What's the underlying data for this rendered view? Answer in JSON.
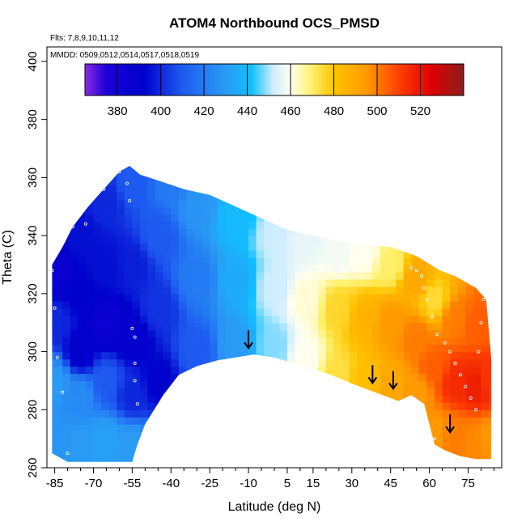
{
  "chart_data": {
    "type": "heatmap",
    "title": "ATOM4 Northbound OCS_PMSD",
    "subtitle_flights": "Flts: 7,8,9,10,11,12",
    "subtitle_dates": "MMDD: 0509,0512,0514,0517,0518,0519",
    "xlabel": "Latitude (deg N)",
    "ylabel": "Theta (C)",
    "xlim": [
      -88,
      88
    ],
    "ylim": [
      260,
      405
    ],
    "x_ticks": [
      -85,
      -70,
      -55,
      -40,
      -25,
      -10,
      5,
      15,
      30,
      45,
      60,
      75
    ],
    "y_ticks": [
      260,
      280,
      300,
      320,
      340,
      360,
      380,
      400
    ],
    "colorbar": {
      "range": [
        365,
        540
      ],
      "ticks": [
        380,
        400,
        420,
        440,
        460,
        480,
        500,
        520
      ],
      "stops": [
        {
          "value": 365,
          "color": "#8a2be2"
        },
        {
          "value": 375,
          "color": "#1a00d8"
        },
        {
          "value": 392,
          "color": "#0000cc"
        },
        {
          "value": 410,
          "color": "#1e5af0"
        },
        {
          "value": 430,
          "color": "#2a9bf5"
        },
        {
          "value": 442,
          "color": "#10c0ff"
        },
        {
          "value": 452,
          "color": "#cfeeff"
        },
        {
          "value": 460,
          "color": "#fffff0"
        },
        {
          "value": 470,
          "color": "#fff06a"
        },
        {
          "value": 480,
          "color": "#ffc400"
        },
        {
          "value": 495,
          "color": "#ff9a00"
        },
        {
          "value": 510,
          "color": "#ff4000"
        },
        {
          "value": 525,
          "color": "#e00000"
        },
        {
          "value": 540,
          "color": "#8b1e1e"
        }
      ]
    },
    "coverage_boundary": {
      "lower": [
        [
          -86,
          265
        ],
        [
          -80,
          262
        ],
        [
          -64,
          262
        ],
        [
          -55,
          262
        ],
        [
          -53,
          268
        ],
        [
          -50,
          275
        ],
        [
          -43,
          285
        ],
        [
          -37,
          292
        ],
        [
          -30,
          295
        ],
        [
          -22,
          297
        ],
        [
          -15,
          298
        ],
        [
          -8,
          299
        ],
        [
          0,
          298
        ],
        [
          7,
          296
        ],
        [
          15,
          294
        ],
        [
          22,
          292
        ],
        [
          30,
          289
        ],
        [
          36,
          287
        ],
        [
          42,
          285
        ],
        [
          48,
          283
        ],
        [
          53,
          285
        ],
        [
          58,
          282
        ],
        [
          62,
          268
        ],
        [
          66,
          266
        ],
        [
          72,
          264
        ],
        [
          78,
          263
        ],
        [
          84,
          263
        ]
      ],
      "upper": [
        [
          84,
          297
        ],
        [
          82,
          318
        ],
        [
          78,
          322
        ],
        [
          74,
          324
        ],
        [
          70,
          326
        ],
        [
          64,
          328
        ],
        [
          55,
          333
        ],
        [
          45,
          336
        ],
        [
          35,
          337
        ],
        [
          25,
          338
        ],
        [
          15,
          340
        ],
        [
          5,
          342
        ],
        [
          -5,
          346
        ],
        [
          -15,
          350
        ],
        [
          -25,
          354
        ],
        [
          -35,
          356
        ],
        [
          -45,
          359
        ],
        [
          -52,
          361
        ],
        [
          -56,
          364
        ],
        [
          -60,
          362
        ],
        [
          -66,
          356
        ],
        [
          -72,
          350
        ],
        [
          -78,
          343
        ],
        [
          -82,
          336
        ],
        [
          -86,
          330
        ]
      ]
    },
    "field_samples": [
      {
        "lat": -85,
        "theta": 270,
        "value": 428
      },
      {
        "lat": -85,
        "theta": 290,
        "value": 430
      },
      {
        "lat": -85,
        "theta": 310,
        "value": 400
      },
      {
        "lat": -85,
        "theta": 328,
        "value": 385
      },
      {
        "lat": -75,
        "theta": 268,
        "value": 430
      },
      {
        "lat": -75,
        "theta": 285,
        "value": 425
      },
      {
        "lat": -75,
        "theta": 300,
        "value": 390
      },
      {
        "lat": -75,
        "theta": 320,
        "value": 392
      },
      {
        "lat": -75,
        "theta": 340,
        "value": 395
      },
      {
        "lat": -65,
        "theta": 270,
        "value": 432
      },
      {
        "lat": -65,
        "theta": 290,
        "value": 410
      },
      {
        "lat": -65,
        "theta": 310,
        "value": 385
      },
      {
        "lat": -65,
        "theta": 330,
        "value": 395
      },
      {
        "lat": -65,
        "theta": 352,
        "value": 400
      },
      {
        "lat": -55,
        "theta": 268,
        "value": 430
      },
      {
        "lat": -55,
        "theta": 285,
        "value": 400
      },
      {
        "lat": -55,
        "theta": 305,
        "value": 388
      },
      {
        "lat": -55,
        "theta": 330,
        "value": 398
      },
      {
        "lat": -55,
        "theta": 358,
        "value": 410
      },
      {
        "lat": -45,
        "theta": 290,
        "value": 392
      },
      {
        "lat": -45,
        "theta": 315,
        "value": 402
      },
      {
        "lat": -45,
        "theta": 340,
        "value": 410
      },
      {
        "lat": -40,
        "theta": 358,
        "value": 420
      },
      {
        "lat": -30,
        "theta": 300,
        "value": 410
      },
      {
        "lat": -30,
        "theta": 325,
        "value": 420
      },
      {
        "lat": -30,
        "theta": 350,
        "value": 428
      },
      {
        "lat": -15,
        "theta": 302,
        "value": 430
      },
      {
        "lat": -15,
        "theta": 325,
        "value": 435
      },
      {
        "lat": -15,
        "theta": 346,
        "value": 440
      },
      {
        "lat": 0,
        "theta": 302,
        "value": 448
      },
      {
        "lat": 0,
        "theta": 322,
        "value": 452
      },
      {
        "lat": 0,
        "theta": 340,
        "value": 452
      },
      {
        "lat": 12,
        "theta": 298,
        "value": 460
      },
      {
        "lat": 12,
        "theta": 318,
        "value": 462
      },
      {
        "lat": 12,
        "theta": 338,
        "value": 456
      },
      {
        "lat": 25,
        "theta": 292,
        "value": 474
      },
      {
        "lat": 25,
        "theta": 315,
        "value": 476
      },
      {
        "lat": 25,
        "theta": 334,
        "value": 458
      },
      {
        "lat": 35,
        "theta": 290,
        "value": 482
      },
      {
        "lat": 35,
        "theta": 312,
        "value": 486
      },
      {
        "lat": 35,
        "theta": 334,
        "value": 460
      },
      {
        "lat": 45,
        "theta": 288,
        "value": 490
      },
      {
        "lat": 45,
        "theta": 310,
        "value": 495
      },
      {
        "lat": 45,
        "theta": 330,
        "value": 470
      },
      {
        "lat": 55,
        "theta": 286,
        "value": 495
      },
      {
        "lat": 55,
        "theta": 305,
        "value": 500
      },
      {
        "lat": 55,
        "theta": 325,
        "value": 490
      },
      {
        "lat": 62,
        "theta": 272,
        "value": 495
      },
      {
        "lat": 62,
        "theta": 295,
        "value": 505
      },
      {
        "lat": 62,
        "theta": 318,
        "value": 475
      },
      {
        "lat": 70,
        "theta": 270,
        "value": 500
      },
      {
        "lat": 70,
        "theta": 290,
        "value": 515
      },
      {
        "lat": 70,
        "theta": 312,
        "value": 500
      },
      {
        "lat": 78,
        "theta": 268,
        "value": 498
      },
      {
        "lat": 78,
        "theta": 288,
        "value": 518
      },
      {
        "lat": 78,
        "theta": 310,
        "value": 505
      },
      {
        "lat": 84,
        "theta": 270,
        "value": 495
      },
      {
        "lat": 84,
        "theta": 290,
        "value": 512
      }
    ],
    "sample_points": [
      [
        -86,
        328
      ],
      [
        -85,
        315
      ],
      [
        -84,
        298
      ],
      [
        -82,
        286
      ],
      [
        -80,
        265
      ],
      [
        -78,
        343
      ],
      [
        -73,
        344
      ],
      [
        -66,
        356
      ],
      [
        -63,
        360
      ],
      [
        -60,
        362
      ],
      [
        -57,
        358
      ],
      [
        -56,
        352
      ],
      [
        -55,
        308
      ],
      [
        -54,
        305
      ],
      [
        -54,
        296
      ],
      [
        -54,
        290
      ],
      [
        -53,
        282
      ],
      [
        53,
        329
      ],
      [
        55,
        328
      ],
      [
        57,
        326
      ],
      [
        58,
        322
      ],
      [
        59,
        318
      ],
      [
        61,
        312
      ],
      [
        63,
        306
      ],
      [
        66,
        303
      ],
      [
        68,
        300
      ],
      [
        70,
        296
      ],
      [
        72,
        292
      ],
      [
        74,
        288
      ],
      [
        76,
        284
      ],
      [
        78,
        280
      ],
      [
        79,
        300
      ],
      [
        80,
        310
      ],
      [
        81,
        318
      ],
      [
        62,
        270
      ],
      [
        64,
        266
      ]
    ],
    "arrows": [
      {
        "lat": -10,
        "theta": 304
      },
      {
        "lat": 38,
        "theta": 292
      },
      {
        "lat": 46,
        "theta": 290
      },
      {
        "lat": 68,
        "theta": 275
      }
    ]
  }
}
